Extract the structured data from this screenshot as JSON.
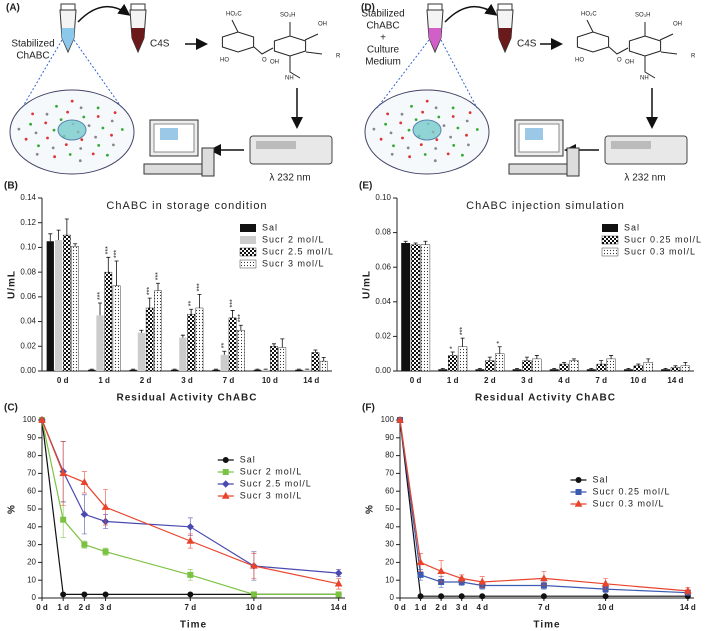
{
  "schematics": [
    {
      "label": "(A)",
      "sample": [
        "Stabilized",
        "ChABC"
      ],
      "substrate": "C4S",
      "wavelength": "λ 232 nm",
      "molecule": [
        "HO₂C",
        "SO₃H",
        "OH",
        "HO",
        "OH",
        "O",
        "NH",
        "R"
      ]
    },
    {
      "label": "(D)",
      "sample": [
        "Stabilized",
        "ChABC",
        "+",
        "Culture",
        "Medium"
      ],
      "substrate": "C4S",
      "wavelength": "λ 232 nm",
      "molecule": [
        "HO₂C",
        "SO₃H",
        "OH",
        "HO",
        "OH",
        "O",
        "NH",
        "R"
      ]
    }
  ],
  "chart_data": [
    {
      "type": "bar",
      "label": "(B)",
      "title": "ChABC in storage condition",
      "y_label": "U/mL",
      "x_label": "Residual Activity ChABC",
      "categories": [
        "0 d",
        "1 d",
        "2 d",
        "3 d",
        "7 d",
        "10 d",
        "14 d"
      ],
      "ylim": [
        0,
        0.14
      ],
      "yticks": [
        {
          "value": 0,
          "label": "0.00"
        },
        0.02,
        0.04,
        0.06,
        0.08,
        {
          "value": 0.1,
          "label": "0.10"
        },
        0.12,
        0.14
      ],
      "legend": "upper right",
      "series": [
        {
          "name": "Sal",
          "color": "#111111",
          "pattern": "solid",
          "values": [
            0.105,
            0.001,
            0.001,
            0.001,
            0.001,
            0.001,
            0.001
          ],
          "errors": [
            0.006,
            0.0005,
            0.0005,
            0.0005,
            0.0005,
            0.0005,
            0.0005
          ]
        },
        {
          "name": "Sucr 2 mol/L",
          "color": "#cccccc",
          "pattern": "solid",
          "values": [
            0.106,
            0.045,
            0.031,
            0.027,
            0.013,
            0.001,
            0.001
          ],
          "errors": [
            0.008,
            0.01,
            0.002,
            0.002,
            0.003,
            0.0005,
            0.0005
          ],
          "significance": [
            null,
            "***",
            null,
            null,
            "**",
            null,
            null
          ]
        },
        {
          "name": "Sucr 2.5 mol/L",
          "color": "#111111",
          "pattern": "checker",
          "values": [
            0.11,
            0.08,
            0.051,
            0.046,
            0.043,
            0.02,
            0.015
          ],
          "errors": [
            0.013,
            0.012,
            0.008,
            0.004,
            0.006,
            0.002,
            0.002
          ],
          "significance": [
            null,
            "***",
            "***",
            "**",
            "***",
            null,
            null
          ]
        },
        {
          "name": "Sucr 3 mol/L",
          "color": "#111111",
          "pattern": "dots",
          "values": [
            0.101,
            0.069,
            0.065,
            0.051,
            0.033,
            0.019,
            0.008
          ],
          "errors": [
            0.002,
            0.02,
            0.006,
            0.011,
            0.004,
            0.007,
            0.003
          ],
          "significance": [
            null,
            "***",
            "***",
            "***",
            "***",
            null,
            null
          ]
        }
      ]
    },
    {
      "type": "bar",
      "label": "(E)",
      "title": "ChABC injection simulation",
      "y_label": "U/mL",
      "x_label": "Residual Activity ChABC",
      "categories": [
        "0 d",
        "1 d",
        "2 d",
        "3 d",
        "4 d",
        "7 d",
        "10 d",
        "14 d"
      ],
      "ylim": [
        0,
        0.1
      ],
      "yticks": [
        {
          "value": 0,
          "label": "0.00"
        },
        0.02,
        0.04,
        0.06,
        0.08,
        {
          "value": 0.1,
          "label": "0.10"
        }
      ],
      "legend": "upper right",
      "series": [
        {
          "name": "Sal",
          "color": "#111111",
          "pattern": "solid",
          "values": [
            0.074,
            0.001,
            0.001,
            0.001,
            0.001,
            0.001,
            0.001,
            0.001
          ],
          "errors": [
            0.001,
            0.0005,
            0.0005,
            0.0005,
            0.0005,
            0.0005,
            0.0005,
            0.0005
          ]
        },
        {
          "name": "Sucr 0.25 mol/L",
          "color": "#111111",
          "pattern": "checker",
          "values": [
            0.073,
            0.009,
            0.006,
            0.006,
            0.004,
            0.004,
            0.003,
            0.002
          ],
          "errors": [
            0.001,
            0.002,
            0.002,
            0.002,
            0.001,
            0.002,
            0.001,
            0.001
          ],
          "significance": [
            null,
            "*",
            null,
            null,
            null,
            null,
            null,
            null
          ]
        },
        {
          "name": "Sucr 0.3 mol/L",
          "color": "#111111",
          "pattern": "dots",
          "values": [
            0.073,
            0.014,
            0.01,
            0.007,
            0.006,
            0.007,
            0.005,
            0.003
          ],
          "errors": [
            0.002,
            0.005,
            0.004,
            0.002,
            0.001,
            0.002,
            0.002,
            0.002
          ],
          "significance": [
            null,
            "***",
            "*",
            null,
            null,
            null,
            null,
            null
          ]
        }
      ]
    },
    {
      "type": "line",
      "label": "(C)",
      "y_label": "%",
      "x_label": "Time",
      "x": [
        0,
        1,
        2,
        3,
        7,
        10,
        14
      ],
      "xlim": [
        0,
        14.3
      ],
      "xticks": [
        {
          "value": 0,
          "label": "0 d"
        },
        {
          "value": 1,
          "label": "1 d"
        },
        {
          "value": 2,
          "label": "2 d"
        },
        {
          "value": 3,
          "label": "3 d"
        },
        {
          "value": 7,
          "label": "7 d"
        },
        {
          "value": 10,
          "label": "10 d"
        },
        {
          "value": 14,
          "label": "14 d"
        }
      ],
      "ylim": [
        0,
        100
      ],
      "yticks": [
        0,
        10,
        20,
        30,
        40,
        50,
        60,
        70,
        80,
        90,
        100
      ],
      "legend": "center right",
      "series": [
        {
          "name": "Sal",
          "color": "#111111",
          "marker": "circle",
          "values": [
            100,
            2,
            2,
            2,
            2,
            2,
            2
          ],
          "errors": [
            0,
            0.5,
            0.5,
            0.5,
            0.5,
            0.5,
            0.5
          ]
        },
        {
          "name": "Sucr 2 mol/L",
          "color": "#7cc242",
          "marker": "square",
          "values": [
            100,
            44,
            30,
            26,
            13,
            2,
            2
          ],
          "errors": [
            0,
            10,
            2,
            2,
            3,
            0.5,
            0.5
          ]
        },
        {
          "name": "Sucr 2.5 mol/L",
          "color": "#4a4ab0",
          "marker": "diamond",
          "values": [
            100,
            71,
            47,
            43,
            40,
            18,
            14
          ],
          "errors": [
            0,
            17,
            11,
            4,
            5,
            8,
            2
          ]
        },
        {
          "name": "Sucr 3 mol/L",
          "color": "#e8452c",
          "marker": "triangle",
          "values": [
            100,
            70,
            65,
            51,
            32,
            18,
            8
          ],
          "errors": [
            0,
            18,
            6,
            10,
            4,
            7,
            3
          ]
        }
      ]
    },
    {
      "type": "line",
      "label": "(F)",
      "y_label": "%",
      "x_label": "Time",
      "x": [
        0,
        1,
        2,
        3,
        4,
        7,
        10,
        14
      ],
      "xlim": [
        0,
        14.3
      ],
      "xticks": [
        {
          "value": 0,
          "label": "0 d"
        },
        {
          "value": 1,
          "label": "1 d"
        },
        {
          "value": 2,
          "label": "2 d"
        },
        {
          "value": 3,
          "label": "3 d"
        },
        {
          "value": 4,
          "label": "4 d"
        },
        {
          "value": 7,
          "label": "7 d"
        },
        {
          "value": 10,
          "label": "10 d"
        },
        {
          "value": 14,
          "label": "14 d"
        }
      ],
      "ylim": [
        0,
        100
      ],
      "yticks": [
        0,
        10,
        20,
        30,
        40,
        50,
        60,
        70,
        80,
        90,
        100
      ],
      "legend": "center right",
      "series": [
        {
          "name": "Sal",
          "color": "#111111",
          "marker": "circle",
          "values": [
            100,
            1,
            1,
            1,
            1,
            1,
            1,
            1
          ],
          "errors": [
            0,
            0.5,
            0.5,
            0.5,
            0.5,
            0.5,
            0.5,
            0.5
          ]
        },
        {
          "name": "Sucr 0.25 mol/L",
          "color": "#3a5bb0",
          "marker": "square",
          "values": [
            100,
            13,
            9,
            9,
            7,
            7,
            5,
            3
          ],
          "errors": [
            0,
            3,
            3,
            2,
            2,
            2,
            2,
            1
          ]
        },
        {
          "name": "Sucr 0.3 mol/L",
          "color": "#e8452c",
          "marker": "triangle",
          "values": [
            100,
            20,
            15,
            11,
            9,
            11,
            8,
            4
          ],
          "errors": [
            0,
            5,
            6,
            2,
            3,
            4,
            3,
            2
          ]
        }
      ]
    }
  ]
}
